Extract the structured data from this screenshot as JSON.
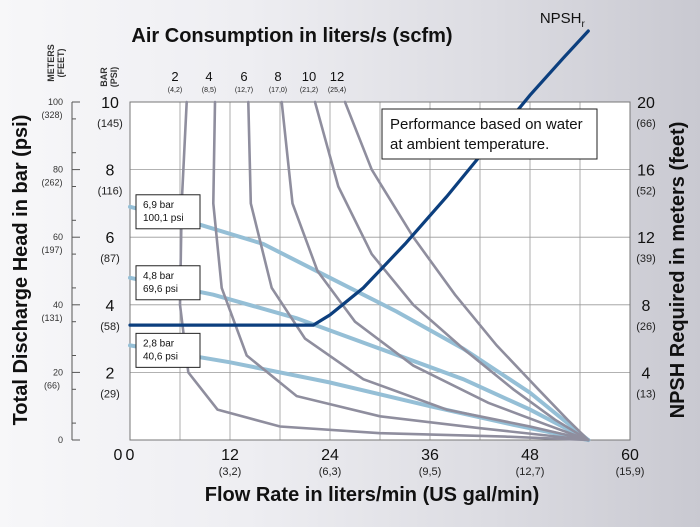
{
  "chart_data": {
    "type": "line",
    "title": "Air Consumption in liters/s (scfm)",
    "xlabel": "Flow Rate in liters/min (US gal/min)",
    "ylabel_left": "Total Discharge Head in bar (psi)",
    "ylabel_right": "NPSH Required in meters (feet)",
    "note": [
      "Performance based on water",
      "at ambient temperature."
    ],
    "x_ticks": [
      {
        "value": 0,
        "label": "0",
        "sub": ""
      },
      {
        "value": 12,
        "label": "12",
        "sub": "(3,2)"
      },
      {
        "value": 24,
        "label": "24",
        "sub": "(6,3)"
      },
      {
        "value": 36,
        "label": "36",
        "sub": "(9,5)"
      },
      {
        "value": 48,
        "label": "48",
        "sub": "(12,7)"
      },
      {
        "value": 60,
        "label": "60",
        "sub": "(15,9)"
      }
    ],
    "xlim": [
      0,
      60
    ],
    "ylim": [
      0,
      10
    ],
    "bar_axis_header": "BAR\n(PSI)",
    "meters_axis_header": "METERS\n(FEET)",
    "bar_ticks": [
      {
        "value": 2,
        "label": "2",
        "sub": "(29)"
      },
      {
        "value": 4,
        "label": "4",
        "sub": "(58)"
      },
      {
        "value": 6,
        "label": "6",
        "sub": "(87)"
      },
      {
        "value": 8,
        "label": "8",
        "sub": "(116)"
      },
      {
        "value": 10,
        "label": "10",
        "sub": "(145)"
      }
    ],
    "meters_ticks": [
      {
        "value": 0,
        "label": "0",
        "sub": ""
      },
      {
        "value": 20,
        "label": "20",
        "sub": "(66)"
      },
      {
        "value": 40,
        "label": "40",
        "sub": "(131)"
      },
      {
        "value": 60,
        "label": "60",
        "sub": "(197)"
      },
      {
        "value": 80,
        "label": "80",
        "sub": "(262)"
      },
      {
        "value": 100,
        "label": "100",
        "sub": "(328)"
      }
    ],
    "right_ticks": [
      {
        "value": 4,
        "label": "4",
        "sub": "(13)"
      },
      {
        "value": 8,
        "label": "8",
        "sub": "(26)"
      },
      {
        "value": 12,
        "label": "12",
        "sub": "(39)"
      },
      {
        "value": 16,
        "label": "16",
        "sub": "(52)"
      },
      {
        "value": 20,
        "label": "20",
        "sub": "(66)"
      }
    ],
    "air_curves": [
      {
        "label": "2",
        "sub": "(4,2)",
        "points": [
          [
            6.8,
            10
          ],
          [
            6.2,
            7
          ],
          [
            6.0,
            4
          ],
          [
            7.0,
            2
          ],
          [
            10.5,
            0.9
          ],
          [
            18,
            0.4
          ],
          [
            30,
            0.2
          ],
          [
            45,
            0.1
          ],
          [
            55,
            0
          ]
        ]
      },
      {
        "label": "4",
        "sub": "(8,5)",
        "points": [
          [
            10.2,
            10
          ],
          [
            10.0,
            7
          ],
          [
            11.0,
            4.5
          ],
          [
            14.0,
            2.5
          ],
          [
            20,
            1.3
          ],
          [
            30,
            0.7
          ],
          [
            42,
            0.35
          ],
          [
            55,
            0
          ]
        ]
      },
      {
        "label": "6",
        "sub": "(12,7)",
        "points": [
          [
            14.2,
            10
          ],
          [
            14.5,
            7
          ],
          [
            17.0,
            4.5
          ],
          [
            21,
            3.0
          ],
          [
            28,
            1.8
          ],
          [
            38,
            0.9
          ],
          [
            48,
            0.4
          ],
          [
            55,
            0
          ]
        ]
      },
      {
        "label": "8",
        "sub": "(17,0)",
        "points": [
          [
            18.2,
            10
          ],
          [
            19.5,
            7
          ],
          [
            22.5,
            5
          ],
          [
            27,
            3.5
          ],
          [
            34,
            2.2
          ],
          [
            43,
            1.1
          ],
          [
            50,
            0.45
          ],
          [
            55,
            0
          ]
        ]
      },
      {
        "label": "10",
        "sub": "(21,2)",
        "points": [
          [
            22.2,
            10
          ],
          [
            25,
            7.5
          ],
          [
            29,
            5.5
          ],
          [
            34,
            4
          ],
          [
            40,
            2.7
          ],
          [
            46,
            1.5
          ],
          [
            51,
            0.6
          ],
          [
            55,
            0
          ]
        ]
      },
      {
        "label": "12",
        "sub": "(25,4)",
        "points": [
          [
            25.8,
            10
          ],
          [
            29,
            8
          ],
          [
            34,
            6
          ],
          [
            39,
            4.3
          ],
          [
            44,
            2.8
          ],
          [
            49,
            1.5
          ],
          [
            52.5,
            0.6
          ],
          [
            55,
            0
          ]
        ]
      }
    ],
    "pressure_curves": [
      {
        "label_bar": "6,9 bar",
        "label_psi": "100,1 psi",
        "points": [
          [
            0,
            6.9
          ],
          [
            8,
            6.4
          ],
          [
            16,
            5.8
          ],
          [
            24,
            4.8
          ],
          [
            32,
            3.8
          ],
          [
            40,
            2.7
          ],
          [
            48,
            1.4
          ],
          [
            55,
            0
          ]
        ]
      },
      {
        "label_bar": "4,8 bar",
        "label_psi": "69,6 psi",
        "points": [
          [
            0,
            4.8
          ],
          [
            10,
            4.3
          ],
          [
            20,
            3.6
          ],
          [
            30,
            2.7
          ],
          [
            40,
            1.8
          ],
          [
            48,
            0.9
          ],
          [
            55,
            0
          ]
        ]
      },
      {
        "label_bar": "2,8 bar",
        "label_psi": "40,6 psi",
        "points": [
          [
            0,
            2.8
          ],
          [
            12,
            2.3
          ],
          [
            24,
            1.7
          ],
          [
            36,
            1.0
          ],
          [
            46,
            0.45
          ],
          [
            55,
            0
          ]
        ]
      }
    ],
    "npsh": {
      "label": "NPSH",
      "sub": "r",
      "points": [
        [
          0,
          3.4
        ],
        [
          22,
          3.4
        ],
        [
          24,
          3.7
        ],
        [
          28,
          4.5
        ],
        [
          33,
          5.8
        ],
        [
          38,
          7.2
        ],
        [
          43,
          8.7
        ],
        [
          48,
          10.2
        ],
        [
          52,
          11.3
        ],
        [
          55,
          12.1
        ]
      ]
    }
  },
  "colors": {
    "air": "#8f8e9e",
    "pressure": "#95bfd6",
    "npsh": "#0c3f7e",
    "grid": "#999999"
  }
}
